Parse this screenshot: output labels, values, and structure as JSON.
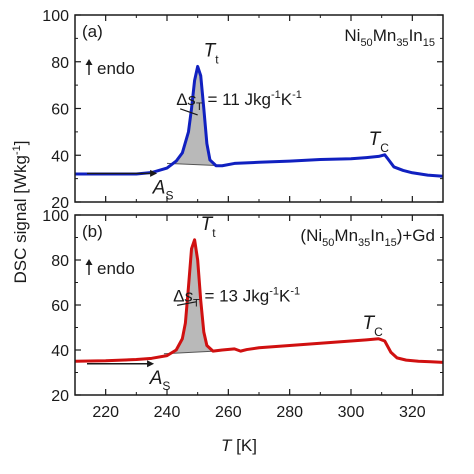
{
  "figure": {
    "ylabel": "DSC signal [Wkg",
    "ylabel_sup": "-1",
    "ylabel_end": "]",
    "xlabel_var": "T",
    "xlabel_unit": " [K]"
  },
  "chart_data": [
    {
      "type": "line",
      "panel_tag": "(a)",
      "composition": {
        "t1": "Ni",
        "s1": "50",
        "t2": "Mn",
        "s2": "35",
        "t3": "In",
        "s3": "15",
        "pre": "",
        "post": ""
      },
      "endo_label": "endo",
      "tt_label": {
        "var": "T",
        "sub": "t"
      },
      "tc_label": {
        "var": "T",
        "sub": "C"
      },
      "as_label": {
        "var": "A",
        "sub": "S"
      },
      "entropy": {
        "pre": "Δ",
        "var": "s",
        "sub": "T",
        "text": " = 11 Jkg",
        "sup1": "-1",
        "mid": "K",
        "sup2": "-1"
      },
      "color": "#1020c0",
      "x": [
        210,
        220,
        230,
        235,
        240,
        243,
        245,
        247,
        248,
        249,
        250,
        251,
        252,
        253,
        254,
        256,
        258,
        262,
        270,
        280,
        290,
        300,
        305,
        309,
        311,
        312,
        314,
        317,
        320,
        325,
        330
      ],
      "y": [
        32,
        32,
        32,
        32.6,
        34.5,
        37.5,
        41,
        50,
        60,
        72,
        78,
        74,
        60,
        45,
        38,
        35.5,
        35.5,
        36.5,
        37,
        37.5,
        38.2,
        38.5,
        39,
        39.5,
        40.2,
        38.5,
        35,
        33.5,
        32.5,
        31.5,
        31
      ],
      "xlim": [
        210,
        330
      ],
      "ylim": [
        20,
        100
      ],
      "yticks": [
        20,
        40,
        60,
        80,
        100
      ],
      "xticks": [
        220,
        240,
        260,
        280,
        300,
        320
      ],
      "shade_x": [
        242,
        256
      ],
      "tc_x": 311
    },
    {
      "type": "line",
      "panel_tag": "(b)",
      "composition": {
        "t1": "Ni",
        "s1": "50",
        "t2": "Mn",
        "s2": "35",
        "t3": "In",
        "s3": "15",
        "pre": "(",
        "post": ")+Gd"
      },
      "endo_label": "endo",
      "tt_label": {
        "var": "T",
        "sub": "t"
      },
      "tc_label": {
        "var": "T",
        "sub": "C"
      },
      "as_label": {
        "var": "A",
        "sub": "S"
      },
      "entropy": {
        "pre": "Δ",
        "var": "s",
        "sub": "T",
        "text": " = 13 Jkg",
        "sup1": "-1",
        "mid": "K",
        "sup2": "-1"
      },
      "color": "#d01010",
      "x": [
        210,
        220,
        230,
        235,
        240,
        243,
        245,
        246,
        247,
        248,
        249,
        250,
        251,
        252,
        253,
        255,
        258,
        262,
        264,
        266,
        270,
        280,
        290,
        300,
        305,
        309,
        311,
        313,
        315,
        318,
        322,
        326,
        330
      ],
      "y": [
        35,
        35.2,
        35.8,
        36.3,
        37.5,
        40,
        45,
        52,
        68,
        85,
        89,
        80,
        62,
        48,
        42,
        39.5,
        40,
        40.5,
        39.5,
        40.2,
        41,
        42,
        43,
        44,
        44.5,
        45,
        44,
        39,
        36.5,
        35.5,
        35,
        34.8,
        34.5
      ],
      "xlim": [
        210,
        330
      ],
      "ylim": [
        20,
        100
      ],
      "yticks": [
        20,
        40,
        60,
        80,
        100
      ],
      "xticks": [
        220,
        240,
        260,
        280,
        300,
        320
      ],
      "shade_x": [
        241,
        256
      ],
      "tc_x": 309
    }
  ]
}
